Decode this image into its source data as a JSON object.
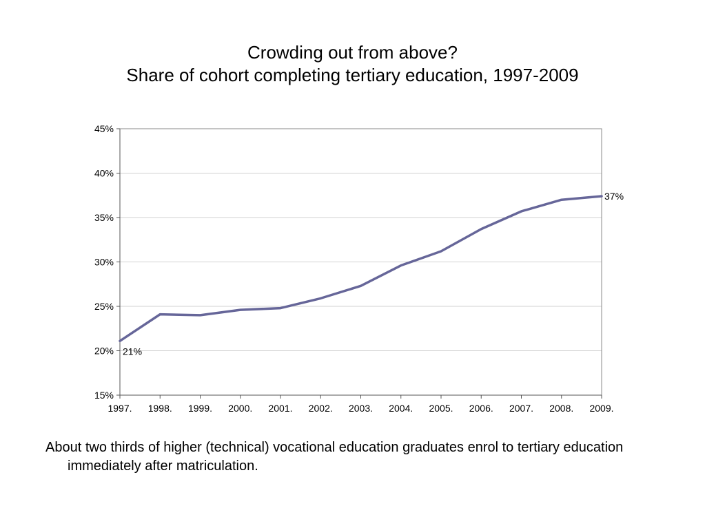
{
  "title": {
    "line1": "Crowding out from above?",
    "line2": "Share of cohort completing tertiary education, 1997-2009"
  },
  "chart_data": {
    "type": "line",
    "x": [
      "1997.",
      "1998.",
      "1999.",
      "2000.",
      "2001.",
      "2002.",
      "2003.",
      "2004.",
      "2005.",
      "2006.",
      "2007.",
      "2008.",
      "2009."
    ],
    "series": [
      {
        "values": [
          21.1,
          24.1,
          24.0,
          24.6,
          24.8,
          25.9,
          27.3,
          29.6,
          31.2,
          33.7,
          35.7,
          37.0,
          37.4
        ],
        "color": "#666699"
      }
    ],
    "data_labels": [
      {
        "index": 0,
        "text": "21%"
      },
      {
        "index": 12,
        "text": "37%"
      }
    ],
    "ylim": [
      15,
      45
    ],
    "yticks": [
      15,
      20,
      25,
      30,
      35,
      40,
      45
    ],
    "ytick_labels": [
      "15%",
      "20%",
      "25%",
      "30%",
      "35%",
      "40%",
      "45%"
    ],
    "grid": true,
    "legend": "none",
    "xlabel": "",
    "ylabel": ""
  },
  "caption": "About two thirds of higher (technical) vocational education graduates enrol to tertiary education immediately after matriculation."
}
